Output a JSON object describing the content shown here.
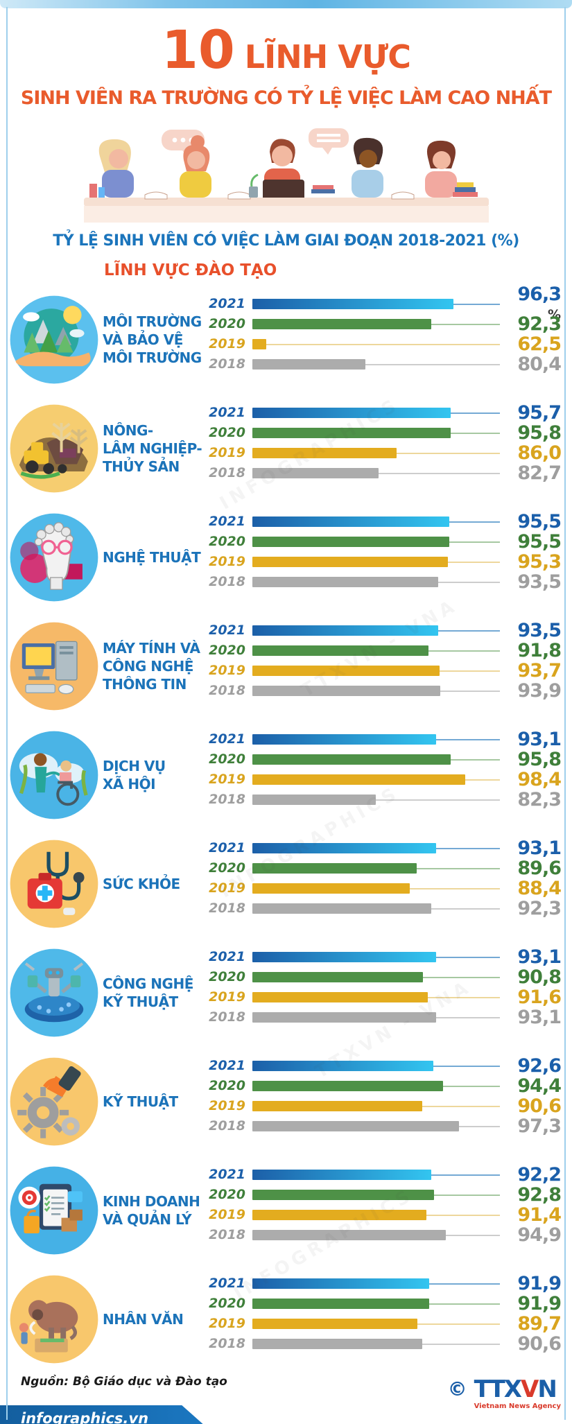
{
  "header": {
    "title_number": "10",
    "title_rest": "LĨNH VỰC",
    "title_line2": "SINH VIÊN RA TRƯỜNG CÓ TỶ LỆ VIỆC LÀM CAO NHẤT",
    "section_label": "LĨNH VỰC ĐÀO TẠO"
  },
  "chart_data": {
    "type": "bar",
    "title": "TỶ LỆ SINH VIÊN CÓ VIỆC LÀM GIAI ĐOẠN 2018-2021 (%)",
    "unit": "%",
    "axis_baseline": 60,
    "legend_position": "per-row year labels",
    "years": [
      "2021",
      "2020",
      "2019",
      "2018"
    ],
    "year_styles": [
      {
        "year": "2021",
        "bar": "#1C5FA8",
        "bar_to": "#33C5F0",
        "label": "#1B5FAA",
        "line": "#74A9D4"
      },
      {
        "year": "2020",
        "bar": "#4E9147",
        "label": "#3F7F3A",
        "line": "#A6C8A1"
      },
      {
        "year": "2019",
        "bar": "#E3AC1F",
        "label": "#D9A41E",
        "line": "#EDD79C"
      },
      {
        "year": "2018",
        "bar": "#ACACAC",
        "label": "#9E9E9E",
        "line": "#CDCDCD"
      }
    ],
    "categories": [
      {
        "name": "MÔI TRƯỜNG\nVÀ BẢO VỆ\nMÔI TRƯỜNG",
        "icon": "environment-icon",
        "values": [
          96.3,
          92.3,
          62.5,
          80.4
        ],
        "value_labels": [
          "96,3",
          "92,3",
          "62,5",
          "80,4"
        ],
        "value_suffix": "%"
      },
      {
        "name": "NÔNG-\nLÂM NGHIỆP-\nTHỦY SẢN",
        "icon": "agriculture-icon",
        "values": [
          95.7,
          95.8,
          86.0,
          82.7
        ],
        "value_labels": [
          "95,7",
          "95,8",
          "86,0",
          "82,7"
        ]
      },
      {
        "name": "NGHỆ THUẬT",
        "icon": "art-icon",
        "values": [
          95.5,
          95.5,
          95.3,
          93.5
        ],
        "value_labels": [
          "95,5",
          "95,5",
          "95,3",
          "93,5"
        ]
      },
      {
        "name": "MÁY TÍNH VÀ\nCÔNG NGHỆ\nTHÔNG TIN",
        "icon": "computer-icon",
        "values": [
          93.5,
          91.8,
          93.7,
          93.9
        ],
        "value_labels": [
          "93,5",
          "91,8",
          "93,7",
          "93,9"
        ]
      },
      {
        "name": "DỊCH VỤ\nXÃ HỘI",
        "icon": "social-service-icon",
        "values": [
          93.1,
          95.8,
          98.4,
          82.3
        ],
        "value_labels": [
          "93,1",
          "95,8",
          "98,4",
          "82,3"
        ]
      },
      {
        "name": "SỨC KHỎE",
        "icon": "health-icon",
        "values": [
          93.1,
          89.6,
          88.4,
          92.3
        ],
        "value_labels": [
          "93,1",
          "89,6",
          "88,4",
          "92,3"
        ]
      },
      {
        "name": "CÔNG NGHỆ\nKỸ THUẬT",
        "icon": "engineering-tech-icon",
        "values": [
          93.1,
          90.8,
          91.6,
          93.1
        ],
        "value_labels": [
          "93,1",
          "90,8",
          "91,6",
          "93,1"
        ]
      },
      {
        "name": "KỸ THUẬT",
        "icon": "engineering-icon",
        "values": [
          92.6,
          94.4,
          90.6,
          97.3
        ],
        "value_labels": [
          "92,6",
          "94,4",
          "90,6",
          "97,3"
        ]
      },
      {
        "name": "KINH DOANH\nVÀ QUẢN LÝ",
        "icon": "business-icon",
        "values": [
          92.2,
          92.8,
          91.4,
          94.9
        ],
        "value_labels": [
          "92,2",
          "92,8",
          "91,4",
          "94,9"
        ]
      },
      {
        "name": "NHÂN VĂN",
        "icon": "humanities-icon",
        "values": [
          91.9,
          91.9,
          89.7,
          90.6
        ],
        "value_labels": [
          "91,9",
          "91,9",
          "89,7",
          "90,6"
        ]
      }
    ]
  },
  "footer": {
    "source": "Nguồn: Bộ Giáo dục và Đào tạo",
    "site": "infographics.vn",
    "copyright": "©",
    "agency_part1": "TTX",
    "agency_part2": "V",
    "agency_part3": "N",
    "agency_sub": "Vietnam News Agency"
  },
  "watermarks": {
    "w1": "INFOGRAPHICS",
    "w2": "TTXVN - VNA"
  },
  "colors": {
    "accent_orange": "#E95B2C",
    "heading_blue": "#1B75BC",
    "section_red": "#E8502B",
    "frame_blue": "#9ECFEC",
    "banner_blue": "#135E9E",
    "strip_blue": "#1E8FD2"
  }
}
